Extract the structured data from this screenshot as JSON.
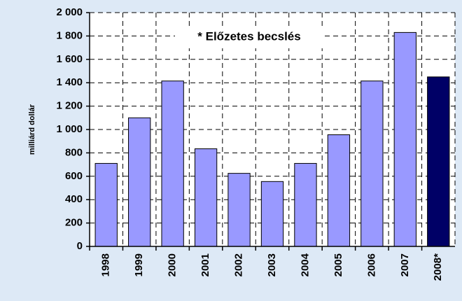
{
  "chart_data": {
    "type": "bar",
    "y_label": "milliárd dollár",
    "annotation": "* Előzetes becslés",
    "categories": [
      "1998",
      "1999",
      "2000",
      "2001",
      "2002",
      "2003",
      "2004",
      "2005",
      "2006",
      "2007",
      "2008*"
    ],
    "values": [
      710,
      1100,
      1415,
      835,
      625,
      555,
      710,
      955,
      1415,
      1830,
      1450
    ],
    "colors": [
      "#9999ff",
      "#9999ff",
      "#9999ff",
      "#9999ff",
      "#9999ff",
      "#9999ff",
      "#9999ff",
      "#9999ff",
      "#9999ff",
      "#9999ff",
      "#000066"
    ],
    "ylim": [
      0,
      2000
    ],
    "yticks": [
      0,
      200,
      400,
      600,
      800,
      {
        "value": 1000,
        "label": "1 000"
      },
      {
        "value": 1200,
        "label": "1 200"
      },
      {
        "value": 1400,
        "label": "1 400"
      },
      {
        "value": 1600,
        "label": "1 600"
      },
      {
        "value": 1800,
        "label": "1 800"
      },
      {
        "value": 2000,
        "label": "2 000"
      }
    ],
    "grid": true
  }
}
